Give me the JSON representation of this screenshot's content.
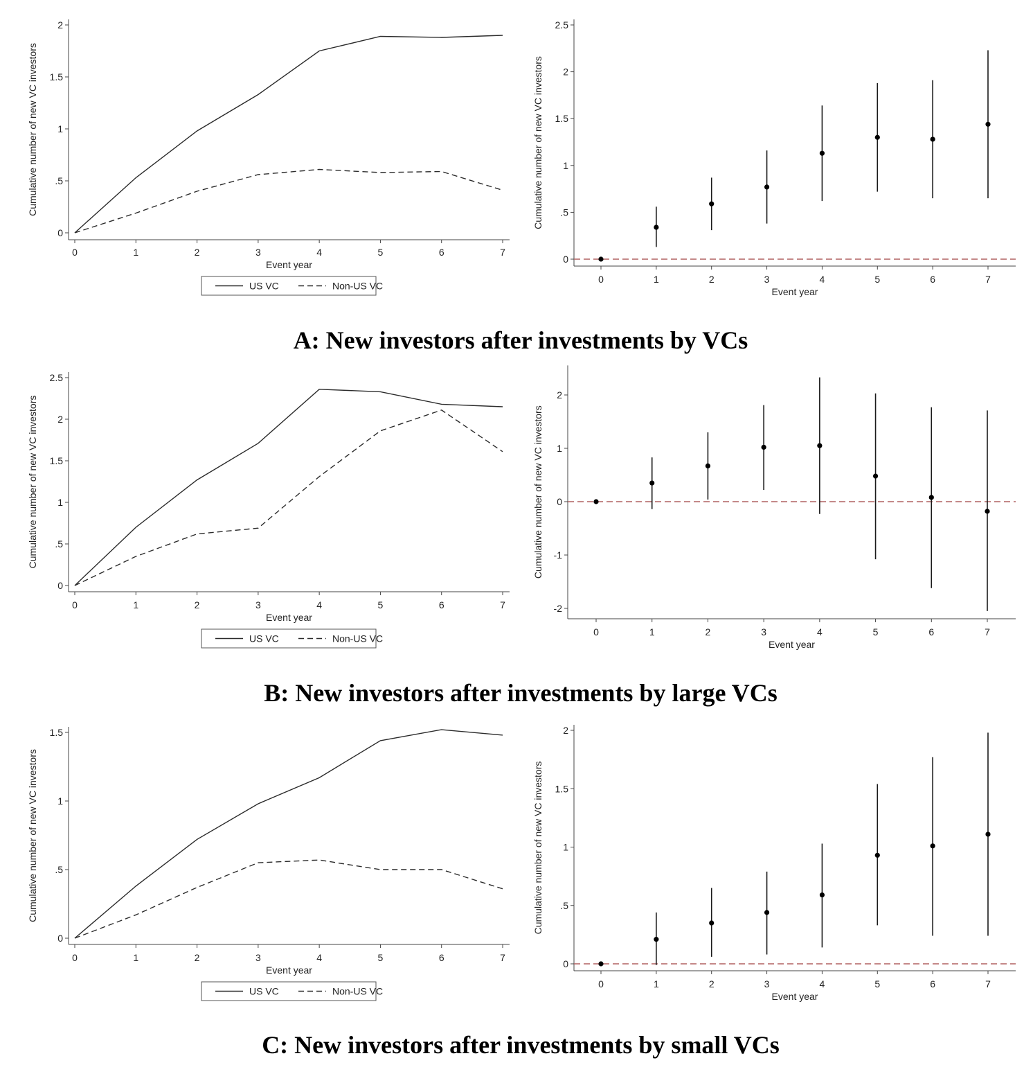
{
  "panels": [
    {
      "title": "A: New investors after investments by VCs"
    },
    {
      "title": "B: New investors after investments by large VCs"
    },
    {
      "title": "C: New investors after investments by small VCs"
    }
  ],
  "chart_data": [
    {
      "panel": "A",
      "side": "left",
      "type": "line",
      "xlabel": "Event year",
      "ylabel": "Cumulative number of new VC investors",
      "x": [
        0,
        1,
        2,
        3,
        4,
        5,
        6,
        7
      ],
      "xticks": [
        "0",
        "1",
        "2",
        "3",
        "4",
        "5",
        "6",
        "7"
      ],
      "ylim": [
        0,
        2
      ],
      "yticks": [
        0,
        0.5,
        1,
        1.5,
        2
      ],
      "ytick_labels": [
        "0",
        ".5",
        "1",
        "1.5",
        "2"
      ],
      "legend": "bottom",
      "series": [
        {
          "name": "US VC",
          "style": "solid",
          "values": [
            0,
            0.53,
            0.98,
            1.33,
            1.75,
            1.89,
            1.88,
            1.9
          ]
        },
        {
          "name": "Non-US VC",
          "style": "dashed",
          "values": [
            0,
            0.19,
            0.4,
            0.56,
            0.61,
            0.58,
            0.59,
            0.41
          ]
        }
      ]
    },
    {
      "panel": "A",
      "side": "right",
      "type": "scatter",
      "xlabel": "Event year",
      "ylabel": "Cumulative number of new VC investors",
      "x": [
        0,
        1,
        2,
        3,
        4,
        5,
        6,
        7
      ],
      "xticks": [
        "0",
        "1",
        "2",
        "3",
        "4",
        "5",
        "6",
        "7"
      ],
      "ylim": [
        0,
        2.5
      ],
      "yticks": [
        0,
        0.5,
        1,
        1.5,
        2,
        2.5
      ],
      "ytick_labels": [
        "0",
        ".5",
        "1",
        "1.5",
        "2",
        "2.5"
      ],
      "reference_line": 0,
      "series": [
        {
          "values": [
            0,
            0.34,
            0.59,
            0.77,
            1.13,
            1.3,
            1.28,
            1.44
          ],
          "lower": [
            0,
            0.13,
            0.31,
            0.38,
            0.62,
            0.72,
            0.65,
            0.65
          ],
          "upper": [
            0,
            0.56,
            0.87,
            1.16,
            1.64,
            1.88,
            1.91,
            2.23
          ]
        }
      ]
    },
    {
      "panel": "B",
      "side": "left",
      "type": "line",
      "xlabel": "Event year",
      "ylabel": "Cumulative number of new VC investors",
      "x": [
        0,
        1,
        2,
        3,
        4,
        5,
        6,
        7
      ],
      "xticks": [
        "0",
        "1",
        "2",
        "3",
        "4",
        "5",
        "6",
        "7"
      ],
      "ylim": [
        0,
        2.5
      ],
      "yticks": [
        0,
        0.5,
        1,
        1.5,
        2,
        2.5
      ],
      "ytick_labels": [
        "0",
        ".5",
        "1",
        "1.5",
        "2",
        "2.5"
      ],
      "legend": "bottom",
      "series": [
        {
          "name": "US VC",
          "style": "solid",
          "values": [
            0,
            0.7,
            1.27,
            1.71,
            2.36,
            2.33,
            2.18,
            2.15
          ]
        },
        {
          "name": "Non-US VC",
          "style": "dashed",
          "values": [
            0,
            0.35,
            0.62,
            0.69,
            1.31,
            1.86,
            2.11,
            1.61
          ]
        }
      ]
    },
    {
      "panel": "B",
      "side": "right",
      "type": "scatter",
      "xlabel": "Event year",
      "ylabel": "Cumulative number of new VC investors",
      "x": [
        0,
        1,
        2,
        3,
        4,
        5,
        6,
        7
      ],
      "xticks": [
        "0",
        "1",
        "2",
        "3",
        "4",
        "5",
        "6",
        "7"
      ],
      "ylim": [
        -2.15,
        2.45
      ],
      "yticks": [
        -2,
        -1,
        0,
        1,
        2
      ],
      "ytick_labels": [
        "-2",
        "-1",
        "0",
        "1",
        "2"
      ],
      "reference_line": 0,
      "series": [
        {
          "values": [
            0,
            0.35,
            0.67,
            1.02,
            1.05,
            0.48,
            0.08,
            -0.18
          ],
          "lower": [
            0,
            -0.14,
            0.04,
            0.22,
            -0.23,
            -1.08,
            -1.62,
            -2.05
          ],
          "upper": [
            0,
            0.83,
            1.3,
            1.81,
            2.33,
            2.03,
            1.77,
            1.71
          ]
        }
      ]
    },
    {
      "panel": "C",
      "side": "left",
      "type": "line",
      "xlabel": "Event year",
      "ylabel": "Cumulative number of new VC investors",
      "x": [
        0,
        1,
        2,
        3,
        4,
        5,
        6,
        7
      ],
      "xticks": [
        "0",
        "1",
        "2",
        "3",
        "4",
        "5",
        "6",
        "7"
      ],
      "ylim": [
        0,
        1.5
      ],
      "yticks": [
        0,
        0.5,
        1,
        1.5
      ],
      "ytick_labels": [
        "0",
        ".5",
        "1",
        "1.5"
      ],
      "legend": "bottom",
      "series": [
        {
          "name": "US VC",
          "style": "solid",
          "values": [
            0,
            0.38,
            0.72,
            0.98,
            1.17,
            1.44,
            1.52,
            1.48
          ]
        },
        {
          "name": "Non-US VC",
          "style": "dashed",
          "values": [
            0,
            0.17,
            0.37,
            0.55,
            0.57,
            0.5,
            0.5,
            0.36
          ]
        }
      ]
    },
    {
      "panel": "C",
      "side": "right",
      "type": "scatter",
      "xlabel": "Event year",
      "ylabel": "Cumulative number of new VC investors",
      "x": [
        0,
        1,
        2,
        3,
        4,
        5,
        6,
        7
      ],
      "xticks": [
        "0",
        "1",
        "2",
        "3",
        "4",
        "5",
        "6",
        "7"
      ],
      "ylim": [
        0,
        2
      ],
      "yticks": [
        0,
        0.5,
        1,
        1.5,
        2
      ],
      "ytick_labels": [
        "0",
        ".5",
        "1",
        "1.5",
        "2"
      ],
      "reference_line": 0,
      "series": [
        {
          "values": [
            0,
            0.21,
            0.35,
            0.44,
            0.59,
            0.93,
            1.01,
            1.11
          ],
          "lower": [
            0,
            -0.01,
            0.06,
            0.08,
            0.14,
            0.33,
            0.24,
            0.24
          ],
          "upper": [
            0,
            0.44,
            0.65,
            0.79,
            1.03,
            1.54,
            1.77,
            1.98
          ]
        }
      ]
    }
  ],
  "colors": {
    "line": "#2b2b2b",
    "ci": "#1a1a1a",
    "reference": "#b06060",
    "axis": "#444444"
  }
}
